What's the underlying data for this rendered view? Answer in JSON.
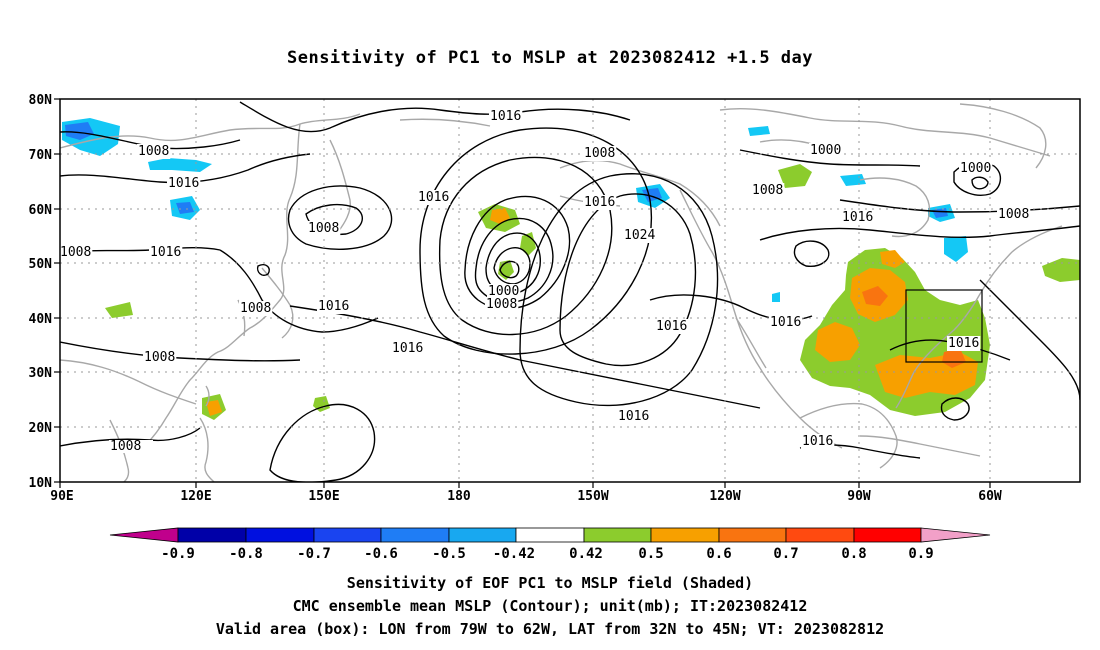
{
  "title": "Sensitivity of PC1 to MSLP at 2023082412 +1.5 day",
  "axes": {
    "lon_labels": [
      "90E",
      "120E",
      "150E",
      "180",
      "150W",
      "120W",
      "90W",
      "60W"
    ],
    "lat_labels": [
      "80N",
      "70N",
      "60N",
      "50N",
      "40N",
      "30N",
      "20N",
      "10N"
    ],
    "lon_range": [
      90,
      310
    ],
    "lat_range": [
      10,
      80
    ]
  },
  "colorbar": {
    "labels": [
      "-0.9",
      "-0.8",
      "-0.7",
      "-0.6",
      "-0.5",
      "-0.42",
      "0.42",
      "0.5",
      "0.6",
      "0.7",
      "0.8",
      "0.9"
    ],
    "colors": [
      "#c0008c",
      "#0000a8",
      "#0010e0",
      "#1a44f0",
      "#1f7df5",
      "#18a8f0",
      "#14c8f5",
      "#ffffff",
      "#8ccc2d",
      "#f7a000",
      "#f97410",
      "#ff4a10",
      "#ff0000",
      "#f2a0c8"
    ]
  },
  "contour_labels": [
    "1016",
    "1008",
    "1016",
    "1008",
    "1016",
    "1008",
    "1008",
    "1016",
    "1016",
    "1016",
    "1000",
    "1008",
    "1016",
    "1008",
    "1016",
    "1016",
    "1024",
    "1016",
    "1016",
    "1008",
    "1000",
    "1000",
    "1008",
    "1016",
    "1008",
    "1016"
  ],
  "colors": {
    "coast": "#a8a8a8",
    "contour": "#000000",
    "grid": "#9a9a9a",
    "green": "#8ccc2d",
    "orange": "#f7a000",
    "dark_orange": "#f97410",
    "cyan": "#14c8f5",
    "blue": "#1f7df5"
  },
  "box": {
    "label": "Valid area",
    "lon": [
      281,
      298
    ],
    "lat": [
      32,
      45
    ]
  },
  "captions": {
    "line1": "Sensitivity of EOF PC1 to MSLP field (Shaded)",
    "line2": "CMC ensemble mean MSLP (Contour); unit(mb); IT:2023082412",
    "line3": "Valid area (box): LON from 79W to 62W, LAT from 32N to 45N; VT: 2023082812"
  }
}
